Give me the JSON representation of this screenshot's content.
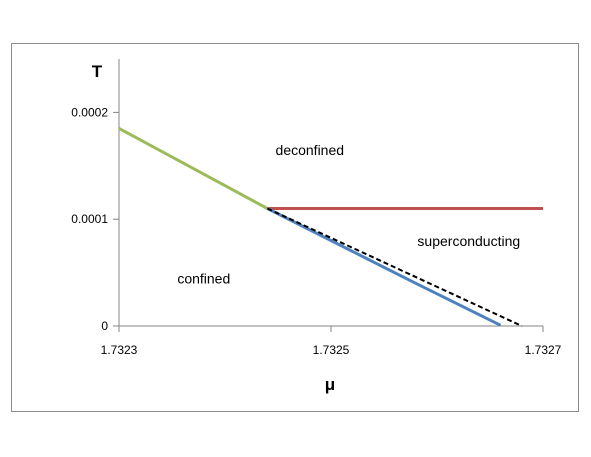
{
  "chart_data": {
    "type": "line",
    "xlabel": "μ",
    "ylabel": "T",
    "xlim": [
      1.7323,
      1.7327
    ],
    "ylim": [
      0,
      0.0002
    ],
    "x_ticks": [
      "1.7323",
      "1.7325",
      "1.7327"
    ],
    "y_ticks": [
      "0",
      "0.0001",
      "0.0002"
    ],
    "x_tick_values": [
      1.7323,
      1.7325,
      1.7327
    ],
    "y_tick_values": [
      0,
      0.0001,
      0.0002
    ],
    "grid": false,
    "legend": "none",
    "series": [
      {
        "color": "#9BBB59",
        "style": "solid",
        "points": [
          [
            1.7323,
            0.000185
          ],
          [
            1.73244,
            0.00011
          ]
        ]
      },
      {
        "color": "#C0504D",
        "style": "solid",
        "points": [
          [
            1.73244,
            0.00011
          ],
          [
            1.7327,
            0.00011
          ]
        ]
      },
      {
        "color": "#4F81BD",
        "style": "solid",
        "points": [
          [
            1.73244,
            0.00011
          ],
          [
            1.73258,
            4e-05
          ],
          [
            1.73266,
            7e-07
          ]
        ]
      },
      {
        "color": "#000000",
        "style": "dashed",
        "points": [
          [
            1.73244,
            0.00011
          ],
          [
            1.73268,
            0.0
          ]
        ]
      }
    ],
    "annotations": [
      {
        "text": "deconfined",
        "x": 1.73248,
        "y": 0.00016
      },
      {
        "text": "superconducting",
        "x": 1.73263,
        "y": 7.5e-05
      },
      {
        "text": "confined",
        "x": 1.73238,
        "y": 4e-05
      }
    ]
  }
}
